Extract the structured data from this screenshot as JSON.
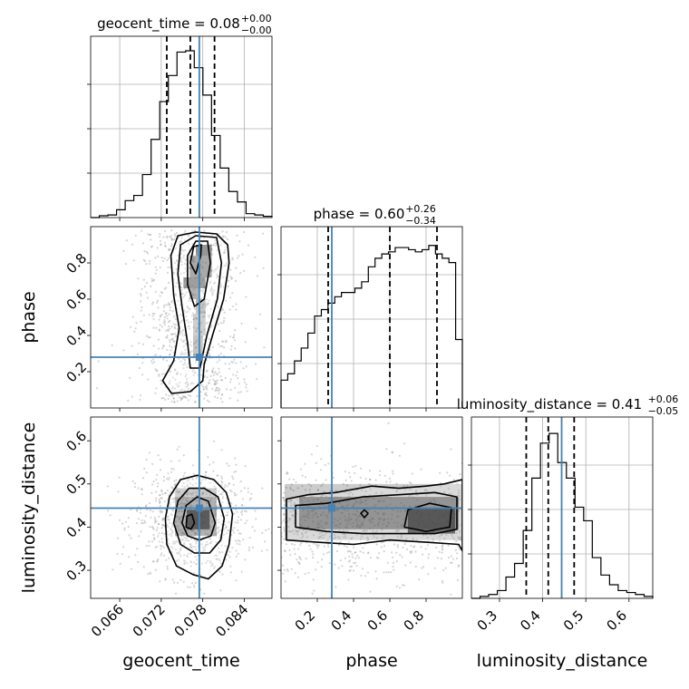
{
  "chart_data": {
    "type": "corner",
    "parameters": [
      {
        "name": "geocent_time",
        "axis_label": "geocent_time",
        "title_main": "geocent_time = 0.08",
        "title_plus": "+0.00",
        "title_minus": "−0.00",
        "range": [
          0.0618,
          0.088
        ],
        "ticks": [
          0.066,
          0.072,
          0.078,
          0.084
        ],
        "tick_labels": [
          "0.066",
          "0.072",
          "0.078",
          "0.084"
        ],
        "quantiles": [
          0.0728,
          0.0762,
          0.0797
        ],
        "truth": 0.0775,
        "hist_edges": [
          0.0618,
          0.088
        ],
        "hist_values": [
          0.0,
          0.007,
          0.01,
          0.03,
          0.065,
          0.085,
          0.165,
          0.3,
          0.445,
          0.545,
          0.635,
          0.64,
          0.575,
          0.47,
          0.315,
          0.19,
          0.1,
          0.06,
          0.015,
          0.01,
          0.005
        ],
        "hist_max": 0.64
      },
      {
        "name": "phase",
        "axis_label": "phase",
        "title_main": "phase = 0.60",
        "title_plus": "+0.26",
        "title_minus": "−0.34",
        "range": [
          0.0,
          1.0
        ],
        "ticks": [
          0.2,
          0.4,
          0.6,
          0.8
        ],
        "tick_labels": [
          "0.2",
          "0.4",
          "0.6",
          "0.8"
        ],
        "quantiles": [
          0.26,
          0.6,
          0.86
        ],
        "truth": 0.28,
        "hist_edges": [
          0.0,
          1.0
        ],
        "hist_values": [
          0.13,
          0.16,
          0.22,
          0.28,
          0.35,
          0.43,
          0.46,
          0.49,
          0.52,
          0.54,
          0.54,
          0.56,
          0.59,
          0.66,
          0.7,
          0.72,
          0.73,
          0.75,
          0.75,
          0.74,
          0.73,
          0.74,
          0.76,
          0.72,
          0.7,
          0.68,
          0.32
        ],
        "hist_max": 0.78
      },
      {
        "name": "luminosity_distance",
        "axis_label": "luminosity_distance",
        "title_main": "luminosity_distance = 0.41",
        "title_plus": "+0.06",
        "title_minus": "−0.05",
        "range": [
          0.235,
          0.655
        ],
        "ticks": [
          0.3,
          0.4,
          0.5,
          0.6
        ],
        "tick_labels": [
          "0.3",
          "0.4",
          "0.5",
          "0.6"
        ],
        "quantiles": [
          0.362,
          0.413,
          0.473
        ],
        "truth": 0.444,
        "hist_edges": [
          0.235,
          0.655
        ],
        "hist_values": [
          0.0,
          0.01,
          0.02,
          0.04,
          0.11,
          0.18,
          0.35,
          0.62,
          0.8,
          0.85,
          0.7,
          0.62,
          0.47,
          0.4,
          0.21,
          0.12,
          0.07,
          0.04,
          0.03,
          0.02,
          0.01
        ],
        "hist_max": 0.86
      }
    ],
    "pairs": [
      {
        "row": 1,
        "col": 0,
        "blocks": [
          [
            0.077,
            0.84,
            0.0793,
            0.9,
            0.55
          ],
          [
            0.0761,
            0.72,
            0.0793,
            0.84,
            0.45
          ],
          [
            0.0752,
            0.66,
            0.0784,
            0.72,
            0.5
          ],
          [
            0.0761,
            0.6,
            0.0775,
            0.66,
            0.4
          ],
          [
            0.077,
            0.52,
            0.0784,
            0.6,
            0.3
          ],
          [
            0.0766,
            0.4,
            0.0784,
            0.52,
            0.25
          ],
          [
            0.0766,
            0.28,
            0.078,
            0.4,
            0.3
          ]
        ],
        "contours": [
          [
            [
              0.0782,
              0.24
            ],
            [
              0.0794,
              0.4
            ],
            [
              0.081,
              0.6
            ],
            [
              0.0818,
              0.8
            ],
            [
              0.0816,
              0.9
            ],
            [
              0.08,
              0.96
            ],
            [
              0.077,
              0.97
            ],
            [
              0.0744,
              0.95
            ],
            [
              0.0734,
              0.84
            ],
            [
              0.0738,
              0.62
            ],
            [
              0.0746,
              0.44
            ],
            [
              0.0738,
              0.26
            ],
            [
              0.0722,
              0.15
            ],
            [
              0.0735,
              0.08
            ],
            [
              0.0762,
              0.09
            ],
            [
              0.078,
              0.15
            ]
          ],
          [
            [
              0.0786,
              0.4
            ],
            [
              0.0801,
              0.6
            ],
            [
              0.0807,
              0.8
            ],
            [
              0.08,
              0.94
            ],
            [
              0.077,
              0.95
            ],
            [
              0.0748,
              0.9
            ],
            [
              0.0744,
              0.74
            ],
            [
              0.075,
              0.56
            ],
            [
              0.0758,
              0.36
            ],
            [
              0.0762,
              0.22
            ],
            [
              0.0776,
              0.22
            ]
          ],
          [
            [
              0.0782,
              0.6
            ],
            [
              0.0791,
              0.8
            ],
            [
              0.0787,
              0.92
            ],
            [
              0.077,
              0.92
            ],
            [
              0.0758,
              0.84
            ],
            [
              0.0758,
              0.68
            ],
            [
              0.0768,
              0.56
            ]
          ],
          [
            [
              0.077,
              0.74
            ],
            [
              0.0777,
              0.84
            ],
            [
              0.0778,
              0.9
            ],
            [
              0.0767,
              0.89
            ],
            [
              0.0762,
              0.8
            ]
          ]
        ],
        "truth_x": 0.0775,
        "truth_y": 0.28,
        "x_ticks": true,
        "y_ticks": true
      },
      {
        "row": 2,
        "col": 0,
        "blocks": [
          [
            0.074,
            0.47,
            0.08,
            0.49,
            0.25
          ],
          [
            0.074,
            0.38,
            0.08,
            0.47,
            0.4
          ],
          [
            0.0757,
            0.395,
            0.079,
            0.44,
            0.75
          ]
        ],
        "contours": [
          [
            [
              0.0823,
              0.43
            ],
            [
              0.0818,
              0.36
            ],
            [
              0.0808,
              0.31
            ],
            [
              0.0788,
              0.28
            ],
            [
              0.0766,
              0.29
            ],
            [
              0.0742,
              0.31
            ],
            [
              0.0728,
              0.36
            ],
            [
              0.0726,
              0.42
            ],
            [
              0.0732,
              0.47
            ],
            [
              0.0748,
              0.51
            ],
            [
              0.0772,
              0.52
            ],
            [
              0.0796,
              0.51
            ],
            [
              0.0814,
              0.48
            ]
          ],
          [
            [
              0.0811,
              0.42
            ],
            [
              0.0806,
              0.37
            ],
            [
              0.079,
              0.34
            ],
            [
              0.0768,
              0.34
            ],
            [
              0.0748,
              0.36
            ],
            [
              0.0738,
              0.41
            ],
            [
              0.0744,
              0.46
            ],
            [
              0.076,
              0.49
            ],
            [
              0.0782,
              0.49
            ],
            [
              0.0802,
              0.47
            ]
          ],
          [
            [
              0.0798,
              0.41
            ],
            [
              0.0792,
              0.38
            ],
            [
              0.0775,
              0.37
            ],
            [
              0.0758,
              0.38
            ],
            [
              0.075,
              0.41
            ],
            [
              0.0756,
              0.45
            ],
            [
              0.0772,
              0.47
            ],
            [
              0.0788,
              0.46
            ]
          ],
          [
            [
              0.0768,
              0.41
            ],
            [
              0.0763,
              0.395
            ],
            [
              0.0756,
              0.4
            ],
            [
              0.0757,
              0.425
            ],
            [
              0.0764,
              0.43
            ]
          ]
        ],
        "truth_x": 0.0775,
        "truth_y": 0.444,
        "x_ticks": true,
        "y_ticks": true
      },
      {
        "row": 2,
        "col": 1,
        "blocks": [
          [
            0.02,
            0.37,
            1.0,
            0.5,
            0.2
          ],
          [
            0.1,
            0.395,
            0.98,
            0.47,
            0.45
          ],
          [
            0.7,
            0.385,
            0.96,
            0.445,
            0.7
          ]
        ],
        "contours": [
          [
            [
              0.03,
              0.37
            ],
            [
              0.2,
              0.365
            ],
            [
              0.4,
              0.36
            ],
            [
              0.6,
              0.37
            ],
            [
              0.8,
              0.365
            ],
            [
              0.98,
              0.36
            ],
            [
              1.0,
              0.345
            ],
            [
              1.0,
              0.51
            ],
            [
              0.9,
              0.5
            ],
            [
              0.8,
              0.495
            ],
            [
              0.65,
              0.49
            ],
            [
              0.5,
              0.495
            ],
            [
              0.3,
              0.48
            ],
            [
              0.15,
              0.475
            ],
            [
              0.03,
              0.465
            ]
          ],
          [
            [
              0.08,
              0.4
            ],
            [
              0.25,
              0.39
            ],
            [
              0.45,
              0.385
            ],
            [
              0.65,
              0.385
            ],
            [
              0.85,
              0.385
            ],
            [
              0.97,
              0.395
            ],
            [
              0.97,
              0.47
            ],
            [
              0.85,
              0.48
            ],
            [
              0.65,
              0.475
            ],
            [
              0.45,
              0.47
            ],
            [
              0.25,
              0.455
            ],
            [
              0.08,
              0.45
            ]
          ],
          [
            [
              0.68,
              0.4
            ],
            [
              0.8,
              0.39
            ],
            [
              0.93,
              0.4
            ],
            [
              0.94,
              0.445
            ],
            [
              0.82,
              0.455
            ],
            [
              0.7,
              0.44
            ]
          ],
          [
            [
              0.44,
              0.432
            ],
            [
              0.46,
              0.422
            ],
            [
              0.48,
              0.432
            ],
            [
              0.46,
              0.44
            ]
          ]
        ],
        "truth_x": 0.28,
        "truth_y": 0.444,
        "x_ticks": true,
        "y_ticks": false
      }
    ]
  }
}
